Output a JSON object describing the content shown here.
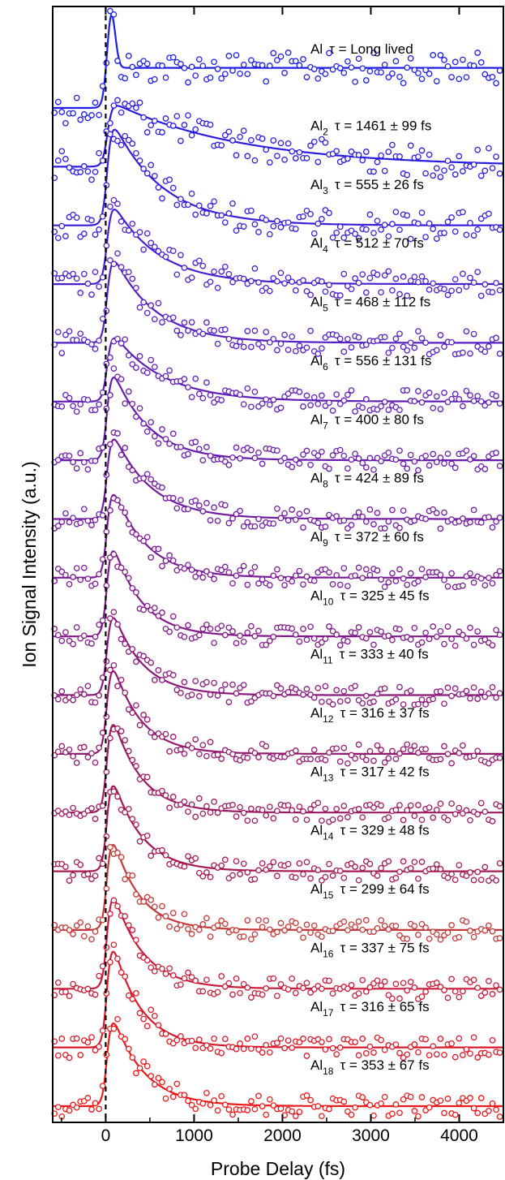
{
  "chart_data": {
    "type": "line",
    "xlabel": "Probe Delay (fs)",
    "ylabel": "Ion Signal Intensity (a.u.)",
    "xlim": [
      -600,
      4500
    ],
    "x_ticks": [
      0,
      1000,
      2000,
      3000,
      4000
    ],
    "x_tick_labels": [
      "0",
      "1000",
      "2000",
      "3000",
      "4000"
    ],
    "zero_line_x": 0,
    "series": [
      {
        "prefix": "Al",
        "sub": "",
        "label": "τ = Long lived",
        "tau": null,
        "amp": 115,
        "plateau": 0.4,
        "offset": 1.85,
        "color": "#1f1fe6"
      },
      {
        "prefix": "Al",
        "sub": "2",
        "label": "τ = 1461 ± 99 fs",
        "tau": 1461,
        "amp": 75,
        "plateau": 0,
        "offset": 1.9,
        "color": "#2a1de0"
      },
      {
        "prefix": "Al",
        "sub": "3",
        "label": "τ = 555 ± 26 fs",
        "tau": 555,
        "amp": 118,
        "plateau": 0,
        "offset": 1.6,
        "color": "#3a1ed8"
      },
      {
        "prefix": "Al",
        "sub": "4",
        "label": "τ = 512 ± 70 fs",
        "tau": 512,
        "amp": 92,
        "plateau": 0,
        "offset": 1.4,
        "color": "#4a1fd0"
      },
      {
        "prefix": "Al",
        "sub": "5",
        "label": "τ = 468 ± 112 fs",
        "tau": 468,
        "amp": 100,
        "plateau": 0,
        "offset": 1.2,
        "color": "#5620c4"
      },
      {
        "prefix": "Al",
        "sub": "6",
        "label": "τ = 556 ± 131 fs",
        "tau": 556,
        "amp": 78,
        "plateau": 0,
        "offset": 1.1,
        "color": "#611fb8"
      },
      {
        "prefix": "Al",
        "sub": "7",
        "label": "τ = 400 ± 80 fs",
        "tau": 400,
        "amp": 102,
        "plateau": 0,
        "offset": 1.0,
        "color": "#6a1dac"
      },
      {
        "prefix": "Al",
        "sub": "8",
        "label": "τ = 424 ± 89 fs",
        "tau": 424,
        "amp": 98,
        "plateau": 0,
        "offset": 0.95,
        "color": "#721ca2"
      },
      {
        "prefix": "Al",
        "sub": "9",
        "label": "τ = 372 ± 60 fs",
        "tau": 372,
        "amp": 102,
        "plateau": 0,
        "offset": 0.9,
        "color": "#7a1b96"
      },
      {
        "prefix": "Al",
        "sub": "10",
        "label": "τ = 325 ± 45 fs",
        "tau": 325,
        "amp": 105,
        "plateau": 0,
        "offset": 0.9,
        "color": "#821a8a"
      },
      {
        "prefix": "Al",
        "sub": "11",
        "label": "τ = 333 ± 40 fs",
        "tau": 333,
        "amp": 95,
        "plateau": 0,
        "offset": 0.85,
        "color": "#8a197d"
      },
      {
        "prefix": "Al",
        "sub": "12",
        "label": "τ = 316 ± 37 fs",
        "tau": 316,
        "amp": 102,
        "plateau": 0,
        "offset": 0.85,
        "color": "#931a70"
      },
      {
        "prefix": "Al",
        "sub": "13",
        "label": "τ = 317 ± 42 fs",
        "tau": 317,
        "amp": 108,
        "plateau": 0,
        "offset": 0.85,
        "color": "#9c1a62"
      },
      {
        "prefix": "Al",
        "sub": "14",
        "label": "τ = 329 ± 48 fs",
        "tau": 329,
        "amp": 105,
        "plateau": 0,
        "offset": 0.9,
        "color": "#a51a54"
      },
      {
        "prefix": "Al",
        "sub": "15",
        "label": "τ = 299 ± 64 fs",
        "tau": 299,
        "amp": 105,
        "plateau": 0,
        "offset": 0.9,
        "color": "#c43a3a"
      },
      {
        "prefix": "Al",
        "sub": "16",
        "label": "τ = 337 ± 75 fs",
        "tau": 337,
        "amp": 110,
        "plateau": 0,
        "offset": 0.95,
        "color": "#c81d3a"
      },
      {
        "prefix": "Al",
        "sub": "17",
        "label": "τ = 316 ± 65 fs",
        "tau": 316,
        "amp": 118,
        "plateau": 0,
        "offset": 1.0,
        "color": "#db1a2a"
      },
      {
        "prefix": "Al",
        "sub": "18",
        "label": "τ = 353 ± 67 fs",
        "tau": 353,
        "amp": 102,
        "plateau": 0,
        "offset": 1.0,
        "color": "#ea1a1a"
      }
    ]
  }
}
